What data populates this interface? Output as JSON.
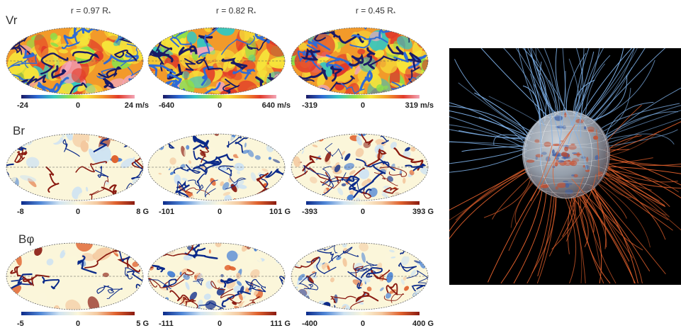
{
  "columns": [
    {
      "label": "r = 0.97 R",
      "sub": "*"
    },
    {
      "label": "r = 0.82 R",
      "sub": "*"
    },
    {
      "label": "r = 0.45 R",
      "sub": "*"
    }
  ],
  "rows": [
    {
      "label": "Vr",
      "scheme": "vr",
      "colorbars": [
        {
          "min": "-24",
          "mid": "0",
          "max": "24 m/s"
        },
        {
          "min": "-640",
          "mid": "0",
          "max": "640 m/s"
        },
        {
          "min": "-319",
          "mid": "0",
          "max": "319 m/s"
        }
      ]
    },
    {
      "label": "Br",
      "scheme": "div",
      "colorbars": [
        {
          "min": "-8",
          "mid": "0",
          "max": "8 G"
        },
        {
          "min": "-101",
          "mid": "0",
          "max": "101 G"
        },
        {
          "min": "-393",
          "mid": "0",
          "max": "393 G"
        }
      ]
    },
    {
      "label": "Bφ",
      "scheme": "div",
      "colorbars": [
        {
          "min": "-5",
          "mid": "0",
          "max": "5 G"
        },
        {
          "min": "-111",
          "mid": "0",
          "max": "111 G"
        },
        {
          "min": "-400",
          "mid": "0",
          "max": "400 G"
        }
      ]
    }
  ],
  "colors": {
    "vr_scale": [
      "#1a1a66",
      "#2e6bd6",
      "#35c7c0",
      "#8de04a",
      "#f6e43a",
      "#f29a2a",
      "#e23b2a",
      "#f2a6b8"
    ],
    "div_scale": [
      "#0b2a8a",
      "#4f86d6",
      "#cfe3f2",
      "#fbf6da",
      "#f4c9a0",
      "#e0622e",
      "#8a1a10"
    ],
    "field_lines_out": "#7fb2ea",
    "field_lines_in": "#e2602c",
    "background_3d": "#000000"
  }
}
